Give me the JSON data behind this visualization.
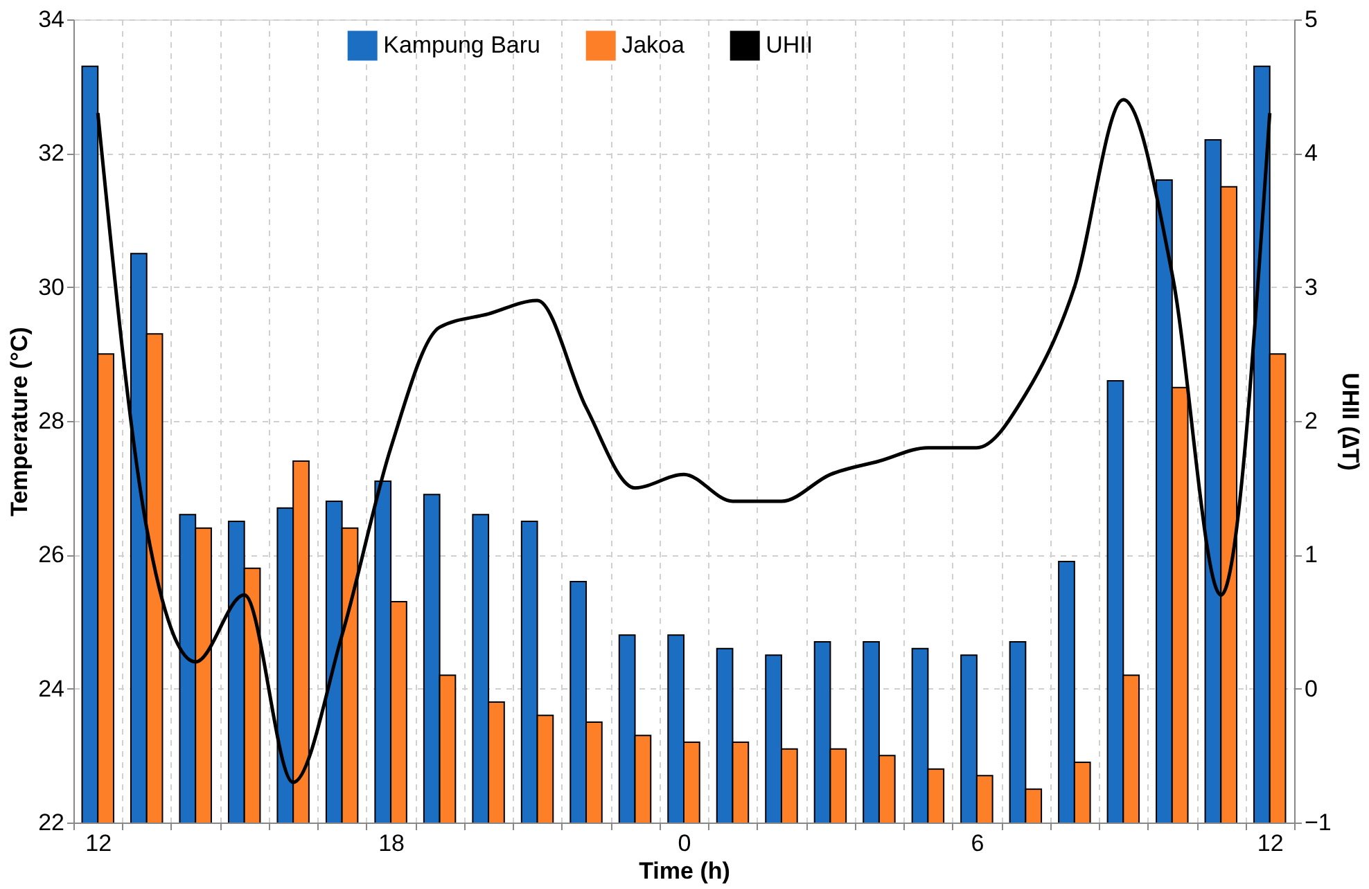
{
  "chart_data": {
    "type": "bar",
    "categories": [
      "12",
      null,
      null,
      null,
      null,
      null,
      "18",
      null,
      null,
      null,
      null,
      null,
      "0",
      null,
      null,
      null,
      null,
      null,
      "6",
      null,
      null,
      null,
      null,
      null,
      "12"
    ],
    "xlabel": "Time (h)",
    "ylabel": "Temperature (°C)",
    "y2label": "UHII (∆T)",
    "series": [
      {
        "name": "Kampung Baru",
        "color": "#1b6ec2",
        "values": [
          33.3,
          30.5,
          26.6,
          26.5,
          26.7,
          26.8,
          27.1,
          26.9,
          26.6,
          26.5,
          25.6,
          24.8,
          24.8,
          24.6,
          24.5,
          24.7,
          24.7,
          24.6,
          24.5,
          24.7,
          25.9,
          28.6,
          31.6,
          32.2,
          33.3
        ]
      },
      {
        "name": "Jakoa",
        "color": "#fd7f28",
        "values": [
          29.0,
          29.3,
          26.4,
          25.8,
          27.4,
          26.4,
          25.3,
          24.2,
          23.8,
          23.6,
          23.5,
          23.3,
          23.2,
          23.2,
          23.1,
          23.1,
          23.0,
          22.8,
          22.7,
          22.5,
          22.9,
          24.2,
          28.5,
          31.5,
          29.0
        ]
      },
      {
        "name": "UHII",
        "type": "line",
        "axis": "y2",
        "color": "#000000",
        "values": [
          4.3,
          1.2,
          0.2,
          0.7,
          -0.7,
          0.4,
          1.8,
          2.7,
          2.8,
          2.9,
          2.1,
          1.5,
          1.6,
          1.4,
          1.4,
          1.6,
          1.7,
          1.8,
          1.8,
          2.2,
          3.0,
          4.4,
          3.1,
          0.7,
          4.3
        ]
      }
    ],
    "ylim": [
      22,
      34
    ],
    "yticks": [
      22,
      24,
      26,
      28,
      30,
      32,
      34
    ],
    "y2lim": [
      -1,
      5
    ],
    "y2ticks": [
      -1,
      0,
      1,
      2,
      3,
      4,
      5
    ],
    "grid": true,
    "legend": "top",
    "marker": "none",
    "line_style": "solid"
  }
}
